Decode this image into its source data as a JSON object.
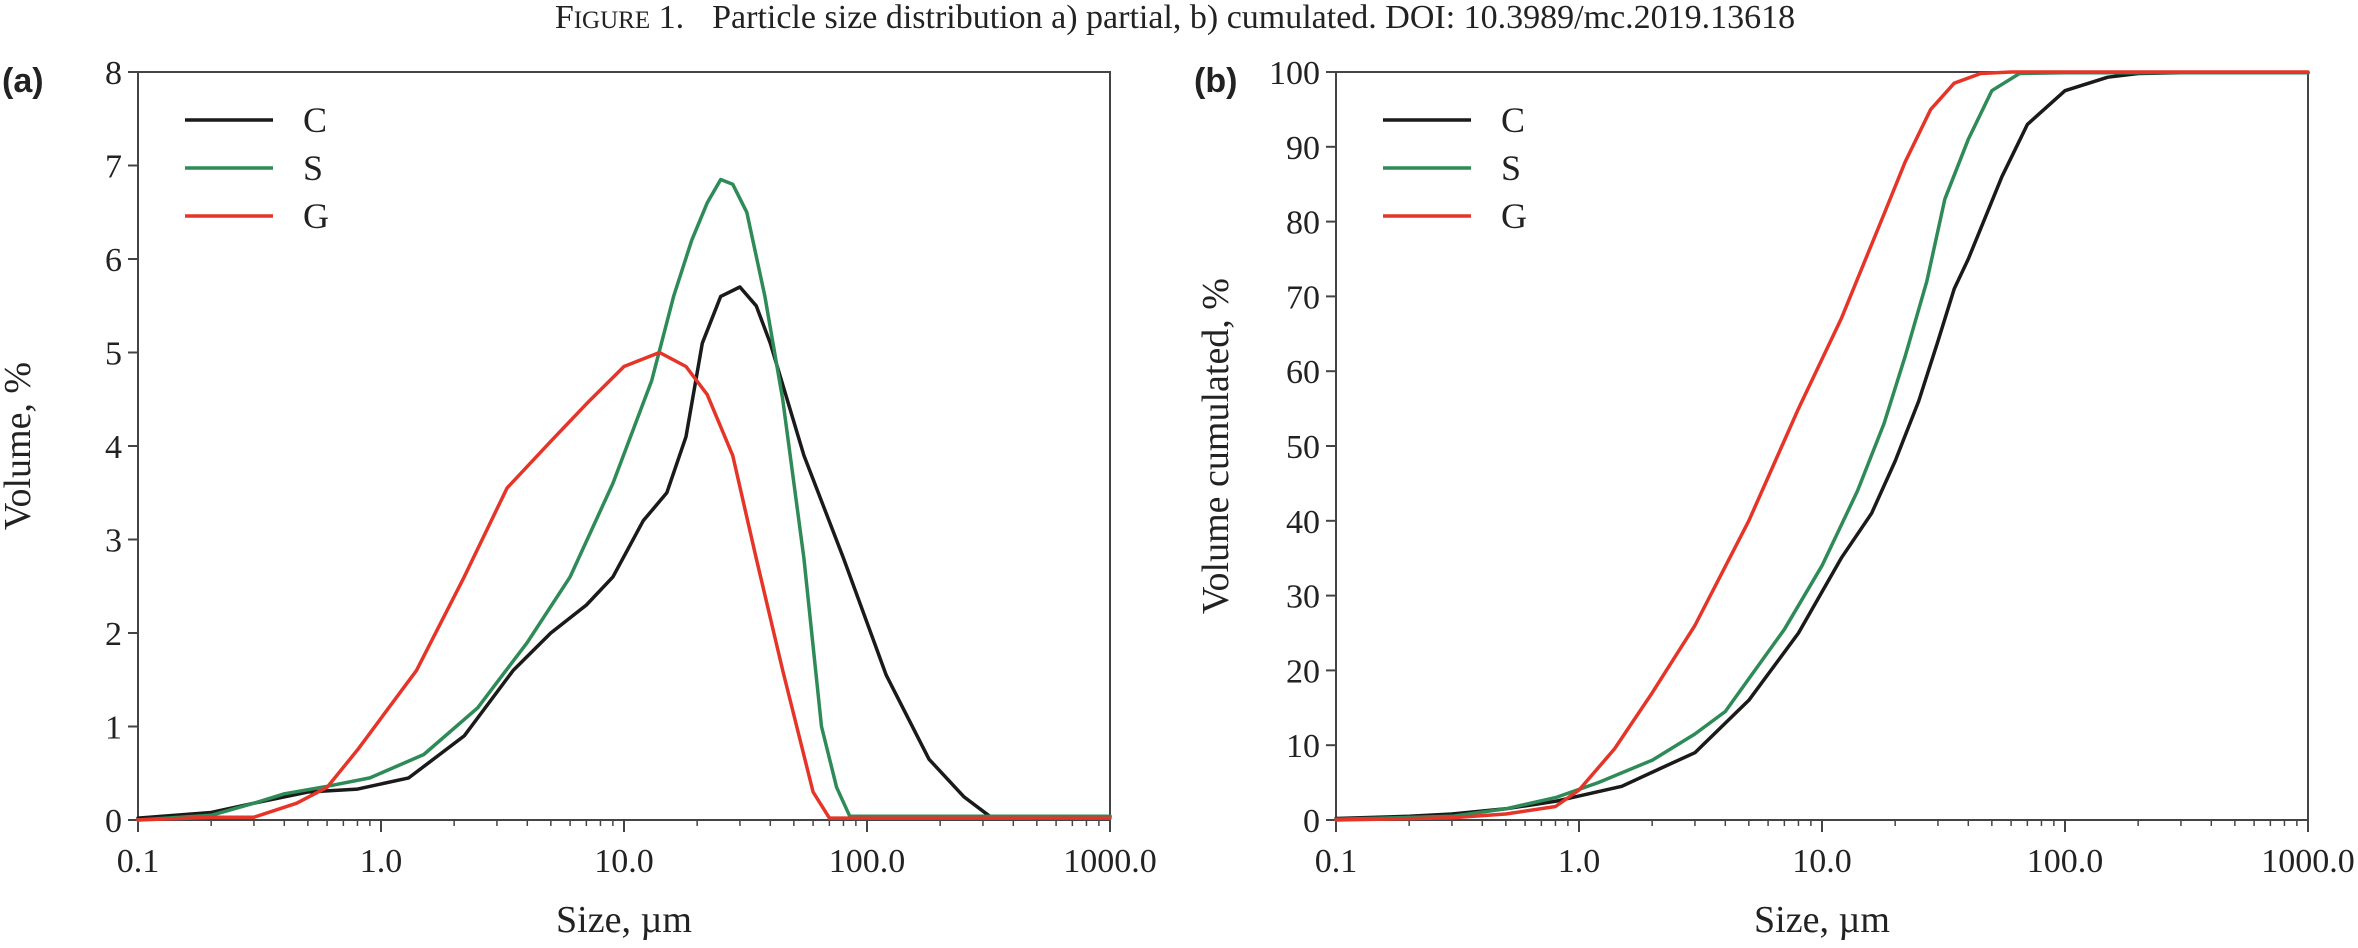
{
  "caption": {
    "figure_word_initial": "F",
    "figure_word_rest": "IGURE",
    "figure_number": "1.",
    "text": "Particle size distribution a) partial, b) cumulated. DOI: 10.3989/mc.2019.13618"
  },
  "chart_data": [
    {
      "panel_label": "(a)",
      "type": "line",
      "xlabel": "Size, µm",
      "ylabel": "Volume, %",
      "xscale": "log",
      "xlim": [
        0.1,
        1000
      ],
      "ylim": [
        0,
        8
      ],
      "x_ticks": [
        0.1,
        1,
        10,
        100,
        1000
      ],
      "x_tick_labels": [
        "0.1",
        "1.0",
        "10.0",
        "100.0",
        "1000.0"
      ],
      "y_ticks": [
        0,
        1,
        2,
        3,
        4,
        5,
        6,
        7,
        8
      ],
      "y_tick_labels": [
        "0",
        "1",
        "2",
        "3",
        "4",
        "5",
        "6",
        "7",
        "8"
      ],
      "legend_position": "top-left",
      "grid": false,
      "series": [
        {
          "name": "C",
          "color": "#1a1a1a",
          "x": [
            0.1,
            0.2,
            0.3,
            0.5,
            0.8,
            1.3,
            2.2,
            3.5,
            5,
            7,
            9,
            12,
            15,
            18,
            21,
            25,
            30,
            35,
            40,
            55,
            80,
            120,
            180,
            250,
            320,
            500,
            1000
          ],
          "y": [
            0.02,
            0.08,
            0.18,
            0.3,
            0.33,
            0.45,
            0.9,
            1.6,
            2.0,
            2.3,
            2.6,
            3.2,
            3.5,
            4.1,
            5.1,
            5.6,
            5.7,
            5.5,
            5.1,
            3.9,
            2.8,
            1.55,
            0.65,
            0.25,
            0.04,
            0.02,
            0.04
          ]
        },
        {
          "name": "S",
          "color": "#2e8b57",
          "x": [
            0.1,
            0.2,
            0.3,
            0.4,
            0.6,
            0.9,
            1.5,
            2.5,
            4,
            6,
            9,
            13,
            16,
            19,
            22,
            25,
            28,
            32,
            38,
            45,
            55,
            65,
            75,
            85,
            100,
            1000
          ],
          "y": [
            0.0,
            0.05,
            0.18,
            0.28,
            0.36,
            0.45,
            0.7,
            1.2,
            1.9,
            2.6,
            3.6,
            4.7,
            5.6,
            6.2,
            6.6,
            6.85,
            6.8,
            6.5,
            5.6,
            4.5,
            2.8,
            1.0,
            0.35,
            0.04,
            0.04,
            0.04
          ]
        },
        {
          "name": "G",
          "color": "#e53528",
          "x": [
            0.1,
            0.2,
            0.3,
            0.45,
            0.6,
            0.8,
            1.4,
            2.2,
            3.3,
            5,
            7,
            10,
            14,
            18,
            22,
            28,
            35,
            45,
            60,
            70,
            100,
            1000
          ],
          "y": [
            0.0,
            0.03,
            0.03,
            0.18,
            0.35,
            0.75,
            1.6,
            2.6,
            3.55,
            4.05,
            4.45,
            4.85,
            5.0,
            4.85,
            4.55,
            3.9,
            2.8,
            1.6,
            0.3,
            0.02,
            0.02,
            0.02
          ]
        }
      ]
    },
    {
      "panel_label": "(b)",
      "type": "line",
      "xlabel": "Size, µm",
      "ylabel": "Volume cumulated, %",
      "xscale": "log",
      "xlim": [
        0.1,
        1000
      ],
      "ylim": [
        0,
        100
      ],
      "x_ticks": [
        0.1,
        1,
        10,
        100,
        1000
      ],
      "x_tick_labels": [
        "0.1",
        "1.0",
        "10.0",
        "100.0",
        "1000.0"
      ],
      "y_ticks": [
        0,
        10,
        20,
        30,
        40,
        50,
        60,
        70,
        80,
        90,
        100
      ],
      "y_tick_labels": [
        "0",
        "10",
        "20",
        "30",
        "40",
        "50",
        "60",
        "70",
        "80",
        "90",
        "100"
      ],
      "legend_position": "top-left",
      "grid": false,
      "series": [
        {
          "name": "C",
          "color": "#1a1a1a",
          "x": [
            0.1,
            0.2,
            0.3,
            0.5,
            0.8,
            1.5,
            2.2,
            3,
            5,
            8,
            12,
            16,
            20,
            25,
            30,
            35,
            40,
            55,
            70,
            100,
            150,
            200,
            300,
            1000
          ],
          "y": [
            0.2,
            0.5,
            0.8,
            1.5,
            2.5,
            4.5,
            7.0,
            9.0,
            16,
            25,
            35,
            41,
            48,
            56,
            64,
            71,
            75,
            86,
            93,
            97.5,
            99.3,
            99.8,
            99.9,
            99.9
          ]
        },
        {
          "name": "S",
          "color": "#2e8b57",
          "x": [
            0.1,
            0.3,
            0.5,
            0.8,
            1.2,
            2,
            3,
            4,
            7,
            10,
            14,
            18,
            22,
            27,
            32,
            40,
            50,
            65,
            100,
            1000
          ],
          "y": [
            0.1,
            0.5,
            1.5,
            3.0,
            5.0,
            8.0,
            11.5,
            14.5,
            25.5,
            34,
            44,
            53,
            62,
            72,
            83,
            91,
            97.5,
            99.8,
            99.9,
            99.9
          ]
        },
        {
          "name": "G",
          "color": "#e53528",
          "x": [
            0.1,
            0.3,
            0.5,
            0.8,
            1.0,
            1.4,
            2,
            3,
            5,
            8,
            12,
            18,
            22,
            28,
            35,
            45,
            60,
            100,
            1000
          ],
          "y": [
            0.0,
            0.3,
            0.8,
            1.8,
            4.0,
            9.5,
            17,
            26,
            40,
            55,
            67,
            81,
            88,
            95,
            98.5,
            99.8,
            100,
            100,
            100
          ]
        }
      ]
    }
  ]
}
